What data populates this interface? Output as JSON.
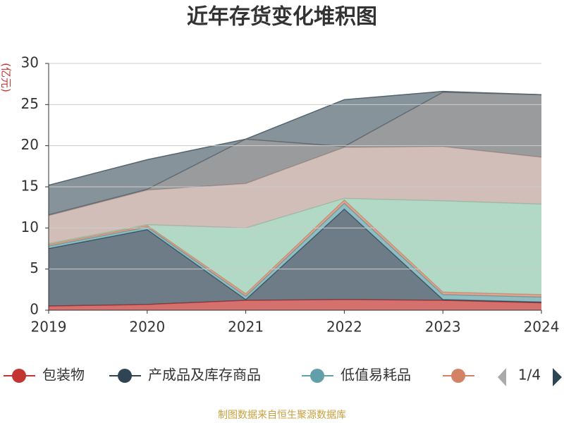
{
  "chart_data": {
    "type": "stacked_area",
    "title": "近年存货变化堆积图",
    "y_unit": "(亿元)",
    "categories": [
      "2019",
      "2020",
      "2021",
      "2022",
      "2023",
      "2024"
    ],
    "ylim": [
      0,
      30
    ],
    "yticks": [
      0,
      5,
      10,
      15,
      20,
      25,
      30
    ],
    "grid": true,
    "series": [
      {
        "name": "包装物",
        "color": "#c23531",
        "values": [
          0.5,
          0.7,
          1.2,
          1.3,
          1.2,
          0.9
        ]
      },
      {
        "name": "产成品及库存商品",
        "color": "#2f4554",
        "values": [
          7.0,
          9.1,
          0.1,
          11.0,
          0.1,
          0.1
        ]
      },
      {
        "name": "低值易耗品",
        "color": "#61a0a8",
        "values": [
          0.3,
          0.3,
          0.4,
          0.7,
          0.6,
          0.6
        ]
      },
      {
        "color": "#d48265",
        "values": [
          0.2,
          0.2,
          0.3,
          0.4,
          0.3,
          0.3
        ]
      },
      {
        "color": "#91c7ae",
        "values": [
          0.1,
          0.1,
          8.0,
          0.2,
          11.1,
          11.0
        ]
      },
      {
        "color": "#bda29a",
        "values": [
          3.4,
          4.2,
          5.4,
          6.2,
          6.6,
          5.7
        ]
      },
      {
        "color": "#6e7074",
        "values": [
          0.1,
          0.1,
          5.4,
          0.1,
          6.6,
          7.6
        ]
      },
      {
        "color": "#546570",
        "values": [
          3.6,
          3.6,
          0.0,
          5.7,
          0.1,
          0.0
        ]
      }
    ],
    "legend_page": "1/4",
    "source": "制图数据来自恒生聚源数据库"
  }
}
